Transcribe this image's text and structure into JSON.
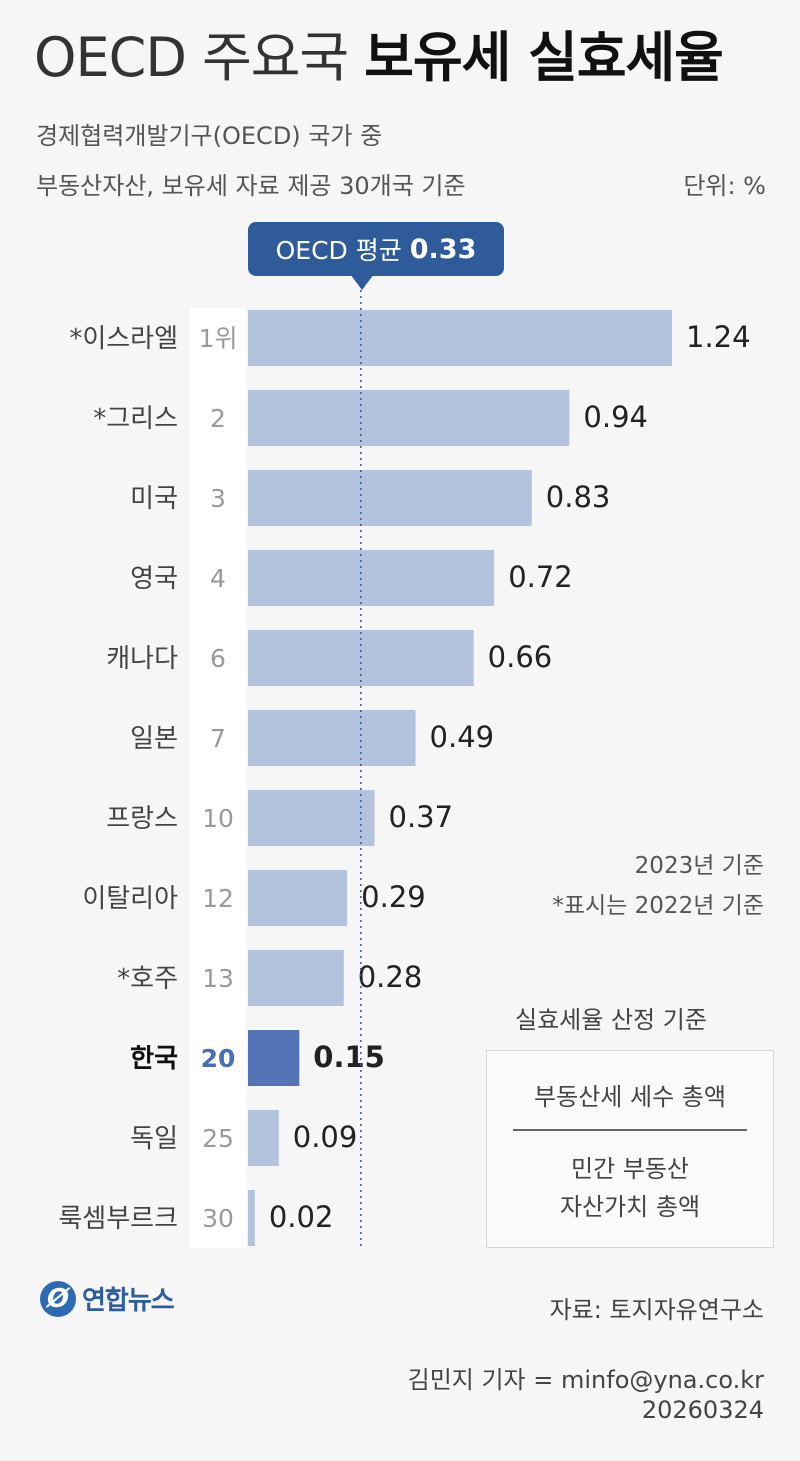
{
  "title": {
    "light": "OECD 주요국",
    "bold": "보유세 실효세율"
  },
  "subtitle": [
    "경제협력개발기구(OECD) 국가 중",
    "부동산자산, 보유세 자료 제공 30개국 기준"
  ],
  "unit": "단위: %",
  "average": {
    "label": "OECD 평균",
    "value": "0.33"
  },
  "notes": [
    "2023년 기준",
    "*표시는 2022년 기준"
  ],
  "formula": {
    "title": "실효세율 산정 기준",
    "numerator": "부동산세 세수 총액",
    "denominator_line1": "민간 부동산",
    "denominator_line2": "자산가치 총액"
  },
  "source": "자료: 토지자유연구소",
  "reporter": "김민지 기자 = minfo@yna.co.kr",
  "date": "20260324",
  "logo": {
    "mark": "Ø",
    "text": "연합뉴스"
  },
  "colors": {
    "bar": "#b3c2dd",
    "highlight_bar": "#5574b8",
    "highlight_rank": "#4a6fb3",
    "accent": "#2f5b9b"
  },
  "chart_data": {
    "type": "bar",
    "orientation": "horizontal",
    "categories": [
      "*이스라엘",
      "*그리스",
      "미국",
      "영국",
      "캐나다",
      "일본",
      "프랑스",
      "이탈리아",
      "*호주",
      "한국",
      "독일",
      "룩셈부르크"
    ],
    "ranks": [
      "1위",
      "2",
      "3",
      "4",
      "6",
      "7",
      "10",
      "12",
      "13",
      "20",
      "25",
      "30"
    ],
    "values": [
      1.24,
      0.94,
      0.83,
      0.72,
      0.66,
      0.49,
      0.37,
      0.29,
      0.28,
      0.15,
      0.09,
      0.02
    ],
    "value_labels": [
      "1.24",
      "0.94",
      "0.83",
      "0.72",
      "0.66",
      "0.49",
      "0.37",
      "0.29",
      "0.28",
      "0.15",
      "0.09",
      "0.02"
    ],
    "highlight": "한국",
    "reference_line": {
      "label": "OECD 평균",
      "value": 0.33
    },
    "xlim": [
      0,
      1.24
    ]
  }
}
